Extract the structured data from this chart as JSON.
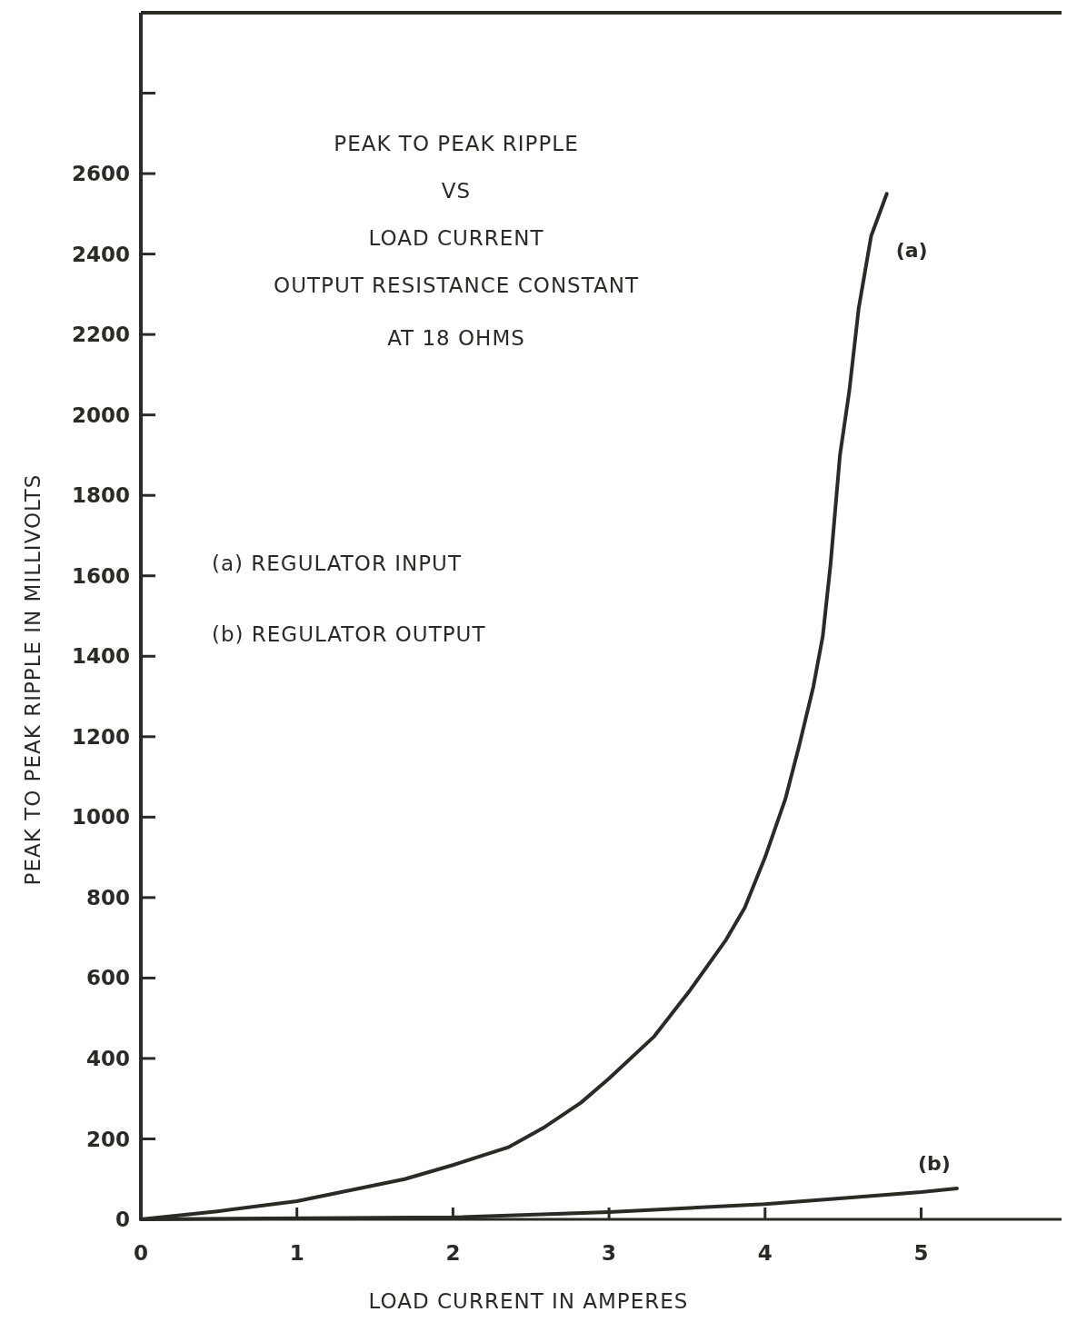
{
  "chart_data": {
    "type": "line",
    "title": "PEAK TO PEAK RIPPLE\nVS\nLOAD CURRENT\nOUTPUT RESISTANCE CONSTANT\nAT 18 OHMS",
    "xlabel": "LOAD CURRENT IN AMPERES",
    "ylabel": "PEAK TO PEAK RIPPLE IN MILLIVOLTS",
    "annotations": [
      "(a) REGULATOR INPUT",
      "(b) REGULATOR OUTPUT"
    ],
    "xlim": [
      0,
      5.9
    ],
    "xticks": [
      0,
      1,
      2,
      3,
      4,
      5
    ],
    "ylim": [
      0,
      3000
    ],
    "yticks": [
      0,
      200,
      400,
      600,
      800,
      1000,
      1200,
      1400,
      1600,
      1800,
      2000,
      2200,
      2400,
      2600,
      {
        "value": 2800,
        "label": null
      }
    ],
    "grid": false,
    "marker": "none",
    "line_style": "solid",
    "series": [
      {
        "name": "(a)",
        "color": "#2b2b26",
        "x": [
          0,
          0.49,
          1,
          1.69,
          2,
          2.36,
          2.59,
          2.82,
          3,
          3.29,
          3.52,
          3.75,
          3.87,
          4,
          4.13,
          4.22,
          4.31,
          4.37,
          4.42,
          4.48,
          4.54,
          4.6,
          4.68,
          4.78
        ],
        "values": [
          0,
          20,
          45,
          100,
          135,
          180,
          230,
          290,
          350,
          455,
          570,
          695,
          775,
          900,
          1045,
          1180,
          1325,
          1450,
          1630,
          1900,
          2060,
          2265,
          2445,
          2550
        ]
      },
      {
        "name": "(b)",
        "color": "#2b2b26",
        "x": [
          0,
          2,
          3,
          4,
          4.57,
          5,
          5.23
        ],
        "values": [
          0,
          5,
          18,
          38,
          55,
          68,
          77
        ]
      }
    ]
  }
}
